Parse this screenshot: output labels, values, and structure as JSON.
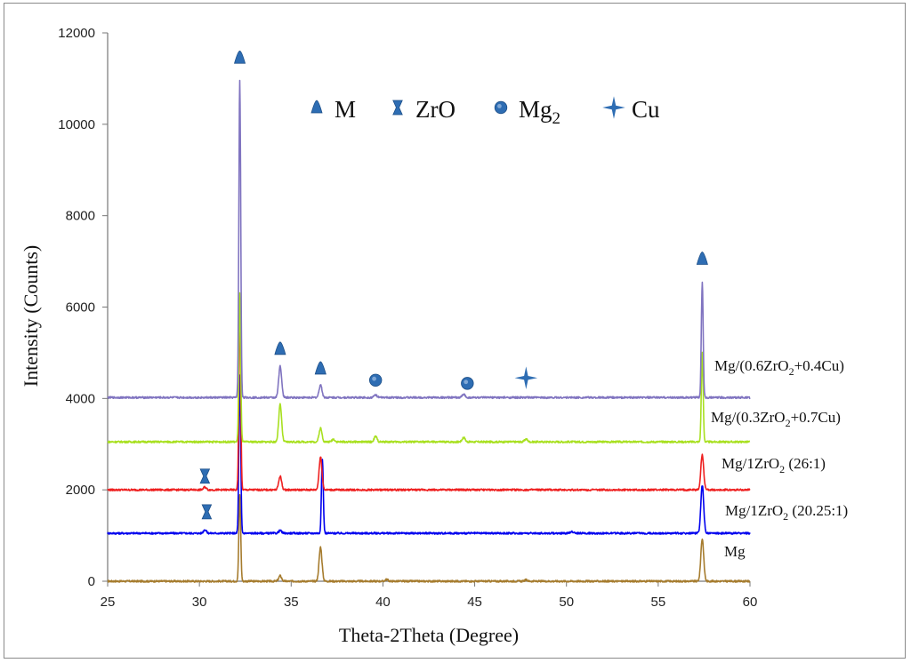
{
  "chart_data": {
    "type": "line",
    "xlabel": "Theta-2Theta (Degree)",
    "ylabel": "Intensity (Counts)",
    "xlim": [
      25,
      60
    ],
    "ylim": [
      0,
      12000
    ],
    "xticks": [
      25,
      30,
      35,
      40,
      45,
      50,
      55,
      60
    ],
    "yticks": [
      0,
      2000,
      4000,
      6000,
      8000,
      10000,
      12000
    ],
    "legend": [
      {
        "symbol": "triangle",
        "text": "M"
      },
      {
        "symbol": "hourglass",
        "text": "ZrO"
      },
      {
        "symbol": "circle",
        "text": "Mg",
        "sub": "2"
      },
      {
        "symbol": "star",
        "text": "Cu"
      }
    ],
    "series": [
      {
        "name": "Mg",
        "label": "Mg",
        "label_sub": "",
        "label_rest": "",
        "color": "#A67C2E",
        "baseline": 0,
        "peaks": [
          [
            32.2,
            1900
          ],
          [
            34.4,
            120
          ],
          [
            36.6,
            750
          ],
          [
            40.2,
            40
          ],
          [
            47.8,
            30
          ],
          [
            57.4,
            930
          ]
        ]
      },
      {
        "name": "Mg/1ZrO2 (20.25:1)",
        "label": "Mg/1ZrO",
        "label_sub": "2",
        "label_rest": " (20.25:1)",
        "color": "#0000EE",
        "baseline": 1050,
        "peaks": [
          [
            30.3,
            80
          ],
          [
            32.2,
            3450
          ],
          [
            34.4,
            60
          ],
          [
            36.7,
            1620
          ],
          [
            50.3,
            40
          ],
          [
            57.4,
            1050
          ]
        ]
      },
      {
        "name": "Mg/1ZrO2 (26:1)",
        "label": "Mg/1ZrO",
        "label_sub": "2",
        "label_rest": " (26:1)",
        "color": "#EE2020",
        "baseline": 2000,
        "peaks": [
          [
            30.3,
            60
          ],
          [
            32.2,
            4100
          ],
          [
            34.4,
            300
          ],
          [
            36.6,
            720
          ],
          [
            57.4,
            760
          ]
        ]
      },
      {
        "name": "Mg/(0.3ZrO2+0.7Cu)",
        "label": "Mg/(0.3ZrO",
        "label_sub": "2",
        "label_rest": "+0.7Cu)",
        "color": "#A8E020",
        "baseline": 3050,
        "peaks": [
          [
            32.2,
            3250
          ],
          [
            34.4,
            820
          ],
          [
            36.6,
            300
          ],
          [
            37.3,
            60
          ],
          [
            39.6,
            120
          ],
          [
            44.4,
            100
          ],
          [
            47.8,
            60
          ],
          [
            57.4,
            1950
          ]
        ]
      },
      {
        "name": "Mg/(0.6ZrO2+0.4Cu)",
        "label": "Mg/(0.6ZrO",
        "label_sub": "2",
        "label_rest": "+0.4Cu)",
        "color": "#8074C0",
        "baseline": 4020,
        "peaks": [
          [
            32.2,
            6950
          ],
          [
            34.4,
            700
          ],
          [
            36.6,
            280
          ],
          [
            39.6,
            60
          ],
          [
            44.4,
            70
          ],
          [
            57.4,
            2520
          ]
        ]
      }
    ],
    "markers": [
      {
        "symbol": "triangle",
        "x": 32.2,
        "y": 11450
      },
      {
        "symbol": "triangle",
        "x": 34.4,
        "y": 5080
      },
      {
        "symbol": "triangle",
        "x": 36.6,
        "y": 4650
      },
      {
        "symbol": "circle",
        "x": 39.6,
        "y": 4400
      },
      {
        "symbol": "circle",
        "x": 44.6,
        "y": 4330
      },
      {
        "symbol": "star",
        "x": 47.8,
        "y": 4450
      },
      {
        "symbol": "triangle",
        "x": 57.4,
        "y": 7050
      },
      {
        "symbol": "hourglass",
        "x": 30.3,
        "y": 2300
      },
      {
        "symbol": "hourglass",
        "x": 30.4,
        "y": 1520
      }
    ]
  }
}
